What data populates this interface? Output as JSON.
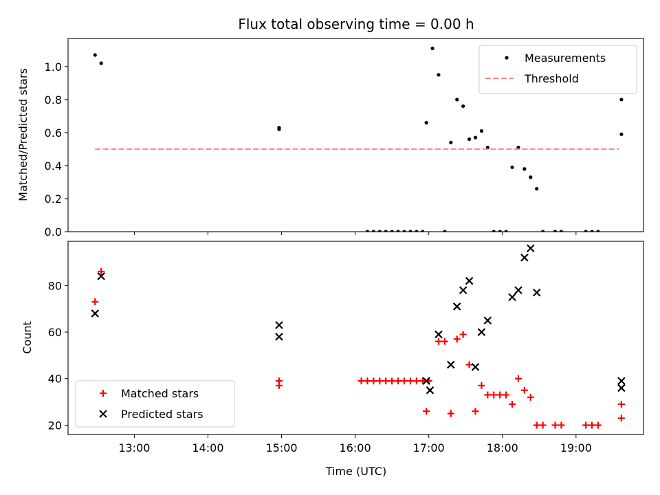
{
  "chart_data": [
    {
      "type": "scatter",
      "title": "Flux total observing time = 0.00 h",
      "xlabel": "",
      "ylabel": "Matched/Predicted stars",
      "xlim": [
        "12:06",
        "19:55"
      ],
      "ylim": [
        0,
        1.17
      ],
      "yticks": [
        "0.0",
        "0.2",
        "0.4",
        "0.6",
        "0.8",
        "1.0"
      ],
      "legend": {
        "position": "top-right",
        "entries": [
          "Measurements",
          "Threshold"
        ]
      },
      "series": [
        {
          "name": "Measurements",
          "color": "#000000",
          "marker": "dot",
          "points": [
            [
              "12:28",
              1.07
            ],
            [
              "12:33",
              1.02
            ],
            [
              "14:58",
              0.63
            ],
            [
              "14:58",
              0.62
            ],
            [
              "16:10",
              0.0
            ],
            [
              "16:15",
              0.0
            ],
            [
              "16:20",
              0.0
            ],
            [
              "16:25",
              0.0
            ],
            [
              "16:30",
              0.0
            ],
            [
              "16:35",
              0.0
            ],
            [
              "16:40",
              0.0
            ],
            [
              "16:45",
              0.0
            ],
            [
              "16:50",
              0.0
            ],
            [
              "16:55",
              0.0
            ],
            [
              "16:58",
              0.66
            ],
            [
              "17:03",
              1.11
            ],
            [
              "17:08",
              0.95
            ],
            [
              "17:13",
              0.0
            ],
            [
              "17:18",
              0.54
            ],
            [
              "17:23",
              0.8
            ],
            [
              "17:28",
              0.76
            ],
            [
              "17:33",
              0.56
            ],
            [
              "17:38",
              0.57
            ],
            [
              "17:43",
              0.61
            ],
            [
              "17:48",
              0.51
            ],
            [
              "17:53",
              0.0
            ],
            [
              "17:58",
              0.0
            ],
            [
              "18:03",
              0.0
            ],
            [
              "18:08",
              0.39
            ],
            [
              "18:13",
              0.51
            ],
            [
              "18:18",
              0.38
            ],
            [
              "18:23",
              0.33
            ],
            [
              "18:28",
              0.26
            ],
            [
              "18:33",
              0.0
            ],
            [
              "18:43",
              0.0
            ],
            [
              "18:48",
              0.0
            ],
            [
              "19:08",
              0.0
            ],
            [
              "19:13",
              0.0
            ],
            [
              "19:18",
              0.0
            ],
            [
              "19:37",
              0.59
            ],
            [
              "19:37",
              0.8
            ]
          ]
        },
        {
          "name": "Threshold",
          "color": "#ff8080",
          "style": "dashed",
          "points": [
            [
              "12:28",
              0.5
            ],
            [
              "19:35",
              0.5
            ]
          ]
        }
      ]
    },
    {
      "type": "scatter",
      "title": "",
      "xlabel": "Time (UTC)",
      "ylabel": "Count",
      "xlim": [
        "12:06",
        "19:55"
      ],
      "ylim": [
        16,
        99
      ],
      "xticks": [
        "13:00",
        "14:00",
        "15:00",
        "16:00",
        "17:00",
        "18:00",
        "19:00"
      ],
      "yticks": [
        "20",
        "40",
        "60",
        "80"
      ],
      "legend": {
        "position": "bottom-left",
        "entries": [
          "Matched stars",
          "Predicted stars"
        ]
      },
      "series": [
        {
          "name": "Matched stars",
          "color": "#ff0000",
          "marker": "plus",
          "points": [
            [
              "12:28",
              73
            ],
            [
              "12:33",
              86
            ],
            [
              "14:58",
              39
            ],
            [
              "14:58",
              37
            ],
            [
              "16:05",
              39
            ],
            [
              "16:10",
              39
            ],
            [
              "16:15",
              39
            ],
            [
              "16:20",
              39
            ],
            [
              "16:25",
              39
            ],
            [
              "16:30",
              39
            ],
            [
              "16:35",
              39
            ],
            [
              "16:40",
              39
            ],
            [
              "16:45",
              39
            ],
            [
              "16:50",
              39
            ],
            [
              "16:55",
              39
            ],
            [
              "17:00",
              39
            ],
            [
              "16:58",
              26
            ],
            [
              "17:08",
              56
            ],
            [
              "17:13",
              56
            ],
            [
              "17:18",
              25
            ],
            [
              "17:23",
              57
            ],
            [
              "17:28",
              59
            ],
            [
              "17:33",
              46
            ],
            [
              "17:38",
              26
            ],
            [
              "17:43",
              37
            ],
            [
              "17:48",
              33
            ],
            [
              "17:53",
              33
            ],
            [
              "17:58",
              33
            ],
            [
              "18:03",
              33
            ],
            [
              "18:08",
              29
            ],
            [
              "18:13",
              40
            ],
            [
              "18:18",
              35
            ],
            [
              "18:23",
              32
            ],
            [
              "18:28",
              20
            ],
            [
              "18:33",
              20
            ],
            [
              "18:43",
              20
            ],
            [
              "18:48",
              20
            ],
            [
              "19:08",
              20
            ],
            [
              "19:13",
              20
            ],
            [
              "19:18",
              20
            ],
            [
              "19:37",
              29
            ],
            [
              "19:37",
              23
            ]
          ]
        },
        {
          "name": "Predicted stars",
          "color": "#000000",
          "marker": "x",
          "points": [
            [
              "12:28",
              68
            ],
            [
              "12:33",
              84
            ],
            [
              "14:58",
              63
            ],
            [
              "14:58",
              58
            ],
            [
              "16:58",
              39
            ],
            [
              "17:01",
              35
            ],
            [
              "17:08",
              59
            ],
            [
              "17:18",
              46
            ],
            [
              "17:23",
              71
            ],
            [
              "17:28",
              78
            ],
            [
              "17:33",
              82
            ],
            [
              "17:38",
              45
            ],
            [
              "17:43",
              60
            ],
            [
              "17:48",
              65
            ],
            [
              "18:08",
              75
            ],
            [
              "18:13",
              78
            ],
            [
              "18:18",
              92
            ],
            [
              "18:23",
              96
            ],
            [
              "18:28",
              77
            ],
            [
              "19:37",
              39
            ],
            [
              "19:37",
              36
            ]
          ]
        }
      ]
    }
  ]
}
